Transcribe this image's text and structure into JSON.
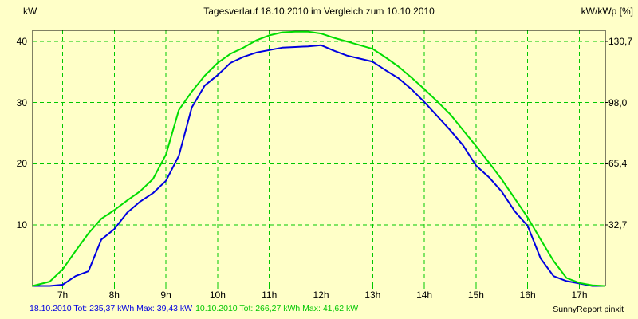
{
  "title": "Tagesverlauf 18.10.2010 im Vergleich zum 10.10.2010",
  "left_axis": {
    "unit": "kW",
    "ticks": [
      {
        "label": "40",
        "value": 40
      },
      {
        "label": "30",
        "value": 30
      },
      {
        "label": "20",
        "value": 20
      },
      {
        "label": "10",
        "value": 10
      }
    ]
  },
  "right_axis": {
    "unit": "kW/kWp [%]",
    "ticks": [
      {
        "label": "130,7",
        "value": 40
      },
      {
        "label": "98,0",
        "value": 30
      },
      {
        "label": "65,4",
        "value": 20
      },
      {
        "label": "32,7",
        "value": 10
      }
    ]
  },
  "x_axis": {
    "ticks": [
      {
        "label": "7h",
        "hour": 7
      },
      {
        "label": "8h",
        "hour": 8
      },
      {
        "label": "9h",
        "hour": 9
      },
      {
        "label": "10h",
        "hour": 10
      },
      {
        "label": "11h",
        "hour": 11
      },
      {
        "label": "12h",
        "hour": 12
      },
      {
        "label": "13h",
        "hour": 13
      },
      {
        "label": "14h",
        "hour": 14
      },
      {
        "label": "15h",
        "hour": 15
      },
      {
        "label": "16h",
        "hour": 16
      },
      {
        "label": "17h",
        "hour": 17
      }
    ]
  },
  "footer": {
    "series1": "18.10.2010 Tot: 235,37 kWh Max: 39,43 kW",
    "series2": "10.10.2010 Tot: 266,27 kWh Max: 41,62 kW",
    "credit": "SunnyReport pinxit"
  },
  "colors": {
    "background": "#FFFFC8",
    "plot_border": "#000000",
    "grid": "#00C800",
    "text": "#000000",
    "series_18_10": "#0000E0",
    "series_10_10": "#00DC00",
    "footer_series1": "#0000E0",
    "footer_series2": "#00C800"
  },
  "chart_data": {
    "type": "line",
    "title": "Tagesverlauf 18.10.2010 im Vergleich zum 10.10.2010",
    "ylabel_left": "kW",
    "ylabel_right": "kW/kWp [%]",
    "xlabel": "",
    "grid": true,
    "legend_position": "none",
    "xlim": [
      6.42,
      17.48
    ],
    "ylim": [
      0,
      41.9
    ],
    "x_tick_hours": [
      7,
      8,
      9,
      10,
      11,
      12,
      13,
      14,
      15,
      16,
      17
    ],
    "y_ticks_left": [
      10,
      20,
      30,
      40
    ],
    "y_tick_labels_right": [
      "32,7",
      "65,4",
      "98,0",
      "130,7"
    ],
    "x": [
      6.42,
      6.75,
      7.0,
      7.25,
      7.5,
      7.75,
      8.0,
      8.25,
      8.5,
      8.75,
      9.0,
      9.25,
      9.5,
      9.75,
      10.0,
      10.25,
      10.5,
      10.75,
      11.0,
      11.25,
      11.5,
      11.75,
      12.0,
      12.25,
      12.5,
      12.75,
      13.0,
      13.25,
      13.5,
      13.75,
      14.0,
      14.25,
      14.5,
      14.75,
      15.0,
      15.25,
      15.5,
      15.75,
      16.0,
      16.25,
      16.5,
      16.75,
      17.0,
      17.25,
      17.48
    ],
    "series": [
      {
        "name": "18.10.2010",
        "total_kwh": 235.37,
        "max_kw": 39.43,
        "color_key": "series_18_10",
        "values": [
          0,
          0,
          0.2,
          1.6,
          2.4,
          7.6,
          9.3,
          12.0,
          13.8,
          15.2,
          17.2,
          21.3,
          29.2,
          32.8,
          34.5,
          36.5,
          37.5,
          38.2,
          38.6,
          39.0,
          39.1,
          39.2,
          39.4,
          38.5,
          37.7,
          37.2,
          36.7,
          35.3,
          34.0,
          32.2,
          30.1,
          27.8,
          25.5,
          23.0,
          19.7,
          17.8,
          15.4,
          12.2,
          9.8,
          4.5,
          1.6,
          0.8,
          0.4,
          0,
          0
        ]
      },
      {
        "name": "10.10.2010",
        "total_kwh": 266.27,
        "max_kw": 41.62,
        "color_key": "series_10_10",
        "values": [
          0,
          0.7,
          2.7,
          5.7,
          8.6,
          11.0,
          12.4,
          14.0,
          15.5,
          17.5,
          21.5,
          28.8,
          31.8,
          34.4,
          36.5,
          38.0,
          39.0,
          40.2,
          41.0,
          41.5,
          41.6,
          41.6,
          41.3,
          40.6,
          40.0,
          39.4,
          38.8,
          37.4,
          35.9,
          34.1,
          32.2,
          30.2,
          28.1,
          25.5,
          22.9,
          20.2,
          17.4,
          14.3,
          11.2,
          7.6,
          4.1,
          1.3,
          0.5,
          0.1,
          0
        ]
      }
    ]
  }
}
